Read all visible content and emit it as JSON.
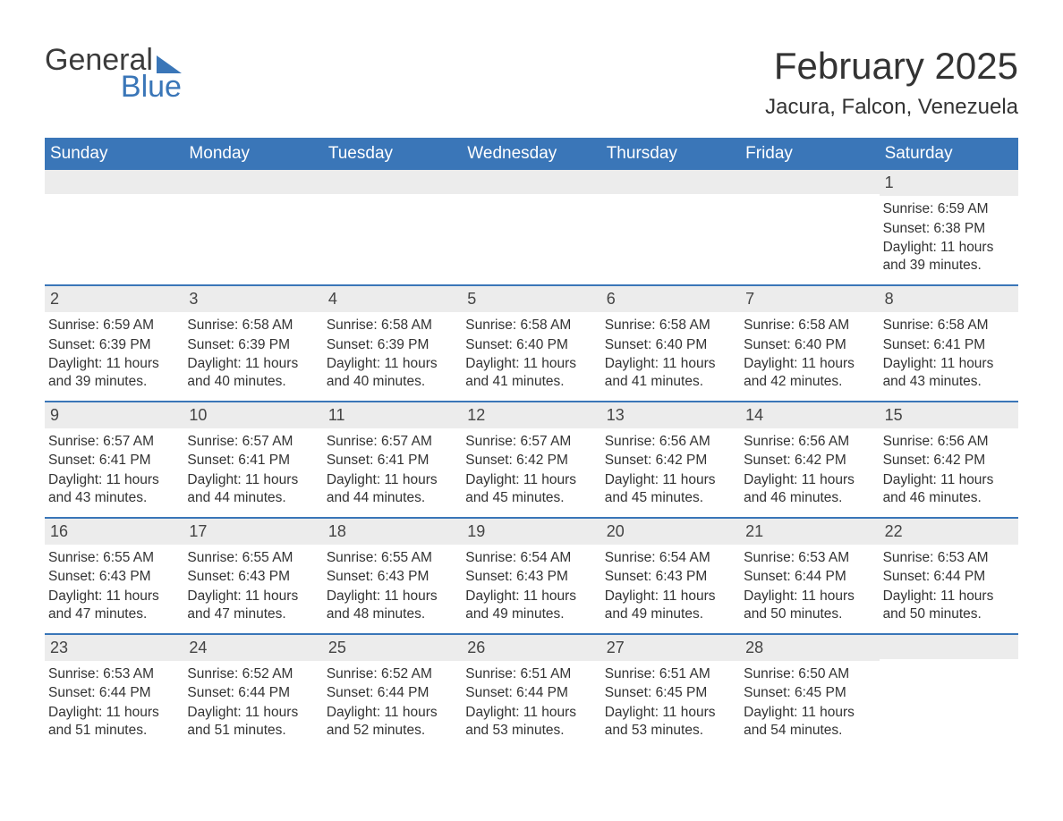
{
  "logo": {
    "line1": "General",
    "line2": "Blue",
    "accent_color": "#3a76b8",
    "text_color": "#3b3b3b"
  },
  "header": {
    "month_title": "February 2025",
    "location": "Jacura, Falcon, Venezuela"
  },
  "colors": {
    "header_bar": "#3a76b8",
    "header_text": "#ffffff",
    "strip_bg": "#ececec",
    "body_text": "#333333",
    "background": "#ffffff",
    "row_border": "#3a76b8"
  },
  "weekdays": [
    "Sunday",
    "Monday",
    "Tuesday",
    "Wednesday",
    "Thursday",
    "Friday",
    "Saturday"
  ],
  "labels": {
    "sunrise": "Sunrise:",
    "sunset": "Sunset:",
    "daylight": "Daylight:"
  },
  "weeks": [
    [
      {
        "empty": true
      },
      {
        "empty": true
      },
      {
        "empty": true
      },
      {
        "empty": true
      },
      {
        "empty": true
      },
      {
        "empty": true
      },
      {
        "day": "1",
        "sunrise": "6:59 AM",
        "sunset": "6:38 PM",
        "daylight": "11 hours and 39 minutes."
      }
    ],
    [
      {
        "day": "2",
        "sunrise": "6:59 AM",
        "sunset": "6:39 PM",
        "daylight": "11 hours and 39 minutes."
      },
      {
        "day": "3",
        "sunrise": "6:58 AM",
        "sunset": "6:39 PM",
        "daylight": "11 hours and 40 minutes."
      },
      {
        "day": "4",
        "sunrise": "6:58 AM",
        "sunset": "6:39 PM",
        "daylight": "11 hours and 40 minutes."
      },
      {
        "day": "5",
        "sunrise": "6:58 AM",
        "sunset": "6:40 PM",
        "daylight": "11 hours and 41 minutes."
      },
      {
        "day": "6",
        "sunrise": "6:58 AM",
        "sunset": "6:40 PM",
        "daylight": "11 hours and 41 minutes."
      },
      {
        "day": "7",
        "sunrise": "6:58 AM",
        "sunset": "6:40 PM",
        "daylight": "11 hours and 42 minutes."
      },
      {
        "day": "8",
        "sunrise": "6:58 AM",
        "sunset": "6:41 PM",
        "daylight": "11 hours and 43 minutes."
      }
    ],
    [
      {
        "day": "9",
        "sunrise": "6:57 AM",
        "sunset": "6:41 PM",
        "daylight": "11 hours and 43 minutes."
      },
      {
        "day": "10",
        "sunrise": "6:57 AM",
        "sunset": "6:41 PM",
        "daylight": "11 hours and 44 minutes."
      },
      {
        "day": "11",
        "sunrise": "6:57 AM",
        "sunset": "6:41 PM",
        "daylight": "11 hours and 44 minutes."
      },
      {
        "day": "12",
        "sunrise": "6:57 AM",
        "sunset": "6:42 PM",
        "daylight": "11 hours and 45 minutes."
      },
      {
        "day": "13",
        "sunrise": "6:56 AM",
        "sunset": "6:42 PM",
        "daylight": "11 hours and 45 minutes."
      },
      {
        "day": "14",
        "sunrise": "6:56 AM",
        "sunset": "6:42 PM",
        "daylight": "11 hours and 46 minutes."
      },
      {
        "day": "15",
        "sunrise": "6:56 AM",
        "sunset": "6:42 PM",
        "daylight": "11 hours and 46 minutes."
      }
    ],
    [
      {
        "day": "16",
        "sunrise": "6:55 AM",
        "sunset": "6:43 PM",
        "daylight": "11 hours and 47 minutes."
      },
      {
        "day": "17",
        "sunrise": "6:55 AM",
        "sunset": "6:43 PM",
        "daylight": "11 hours and 47 minutes."
      },
      {
        "day": "18",
        "sunrise": "6:55 AM",
        "sunset": "6:43 PM",
        "daylight": "11 hours and 48 minutes."
      },
      {
        "day": "19",
        "sunrise": "6:54 AM",
        "sunset": "6:43 PM",
        "daylight": "11 hours and 49 minutes."
      },
      {
        "day": "20",
        "sunrise": "6:54 AM",
        "sunset": "6:43 PM",
        "daylight": "11 hours and 49 minutes."
      },
      {
        "day": "21",
        "sunrise": "6:53 AM",
        "sunset": "6:44 PM",
        "daylight": "11 hours and 50 minutes."
      },
      {
        "day": "22",
        "sunrise": "6:53 AM",
        "sunset": "6:44 PM",
        "daylight": "11 hours and 50 minutes."
      }
    ],
    [
      {
        "day": "23",
        "sunrise": "6:53 AM",
        "sunset": "6:44 PM",
        "daylight": "11 hours and 51 minutes."
      },
      {
        "day": "24",
        "sunrise": "6:52 AM",
        "sunset": "6:44 PM",
        "daylight": "11 hours and 51 minutes."
      },
      {
        "day": "25",
        "sunrise": "6:52 AM",
        "sunset": "6:44 PM",
        "daylight": "11 hours and 52 minutes."
      },
      {
        "day": "26",
        "sunrise": "6:51 AM",
        "sunset": "6:44 PM",
        "daylight": "11 hours and 53 minutes."
      },
      {
        "day": "27",
        "sunrise": "6:51 AM",
        "sunset": "6:45 PM",
        "daylight": "11 hours and 53 minutes."
      },
      {
        "day": "28",
        "sunrise": "6:50 AM",
        "sunset": "6:45 PM",
        "daylight": "11 hours and 54 minutes."
      },
      {
        "empty": true
      }
    ]
  ]
}
